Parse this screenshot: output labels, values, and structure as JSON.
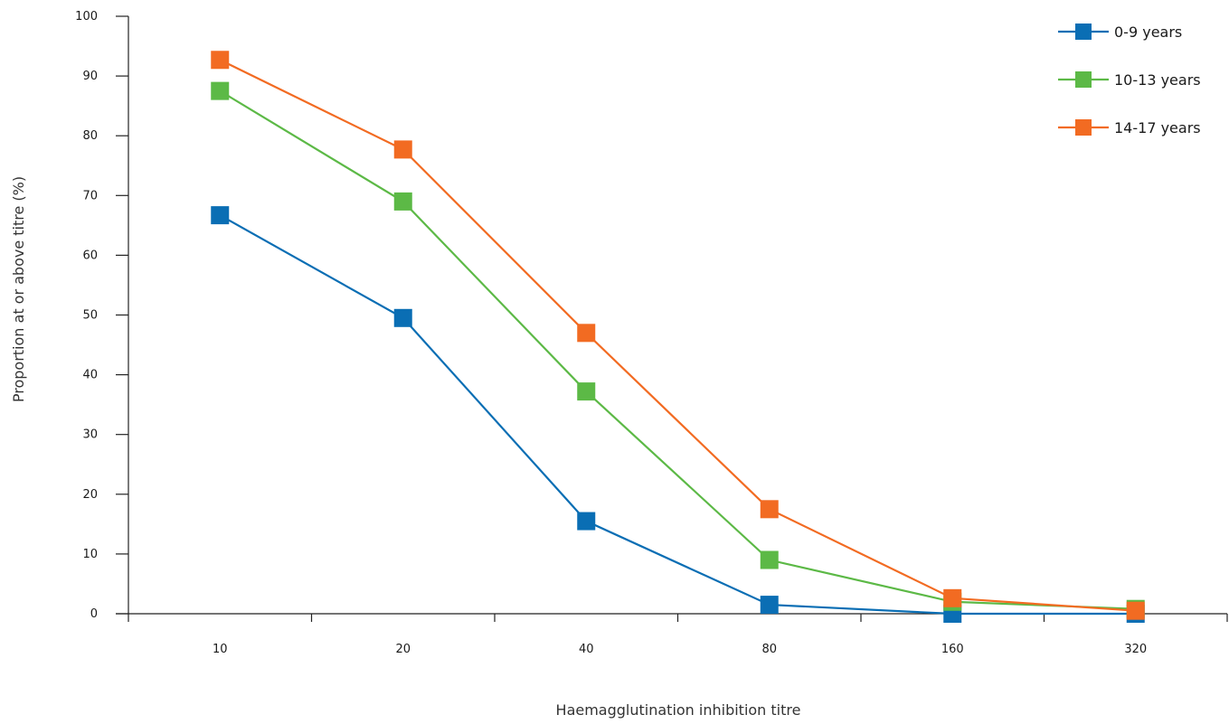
{
  "chart_data": {
    "type": "line",
    "title": "",
    "xlabel": "Haemagglutination inhibition titre",
    "ylabel": "Proportion at or above titre (%)",
    "categories": [
      "10",
      "20",
      "40",
      "80",
      "160",
      "320"
    ],
    "ylim": [
      0,
      100
    ],
    "yticks": [
      0,
      10,
      20,
      30,
      40,
      50,
      60,
      70,
      80,
      90,
      100
    ],
    "grid": false,
    "legend_position": "top-right",
    "series": [
      {
        "name": "0-9 years",
        "color": "#0a6eb4",
        "values": [
          66.7,
          49.5,
          15.5,
          1.5,
          0,
          0
        ]
      },
      {
        "name": "10-13 years",
        "color": "#5cb946",
        "values": [
          87.5,
          69,
          37.2,
          9,
          2,
          0.8
        ]
      },
      {
        "name": "14-17 years",
        "color": "#f26b22",
        "values": [
          92.7,
          77.7,
          47,
          17.5,
          2.6,
          0.5
        ]
      }
    ]
  }
}
